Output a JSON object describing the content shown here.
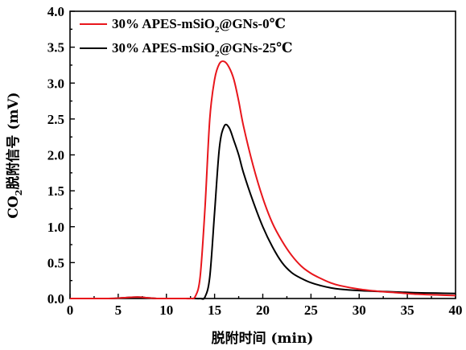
{
  "chart_data": {
    "type": "line",
    "xlabel": "脱附时间 (min)",
    "ylabel": {
      "prefix": "CO",
      "sub": "2",
      "suffix": "脱附信号 (mV)"
    },
    "xlim": [
      0,
      40
    ],
    "ylim": [
      0,
      4.0
    ],
    "xticks": [
      0,
      5,
      10,
      15,
      20,
      25,
      30,
      35,
      40
    ],
    "yticks": [
      0.0,
      0.5,
      1.0,
      1.5,
      2.0,
      2.5,
      3.0,
      3.5,
      4.0
    ],
    "ytick_labels": [
      "0.0",
      "0.5",
      "1.0",
      "1.5",
      "2.0",
      "2.5",
      "3.0",
      "3.5",
      "4.0"
    ],
    "grid": false,
    "legend_position": "top-left",
    "series": [
      {
        "name": {
          "prefix": "30% APES-mSiO",
          "sub": "2",
          "suffix": "@GNs-0℃"
        },
        "color": "#e8161c",
        "x": [
          0,
          4,
          5.5,
          7,
          8,
          9,
          10,
          11,
          12,
          12.5,
          13,
          13.5,
          14,
          14.5,
          15,
          15.5,
          16,
          16.5,
          17,
          17.5,
          18,
          19,
          20,
          21,
          22,
          23,
          24,
          25,
          26,
          27,
          28,
          30,
          32,
          34,
          36,
          38,
          40
        ],
        "y": [
          0.0,
          0.0,
          0.01,
          0.02,
          0.01,
          0.0,
          0.0,
          0.0,
          0.0,
          0.0,
          0.03,
          0.3,
          1.25,
          2.5,
          3.05,
          3.27,
          3.3,
          3.22,
          3.05,
          2.75,
          2.4,
          1.85,
          1.4,
          1.05,
          0.8,
          0.6,
          0.45,
          0.35,
          0.28,
          0.22,
          0.18,
          0.13,
          0.1,
          0.08,
          0.06,
          0.05,
          0.04
        ]
      },
      {
        "name": {
          "prefix": "30% APES-mSiO",
          "sub": "2",
          "suffix": "@GNs-25℃"
        },
        "color": "#000000",
        "x": [
          0,
          4,
          5.5,
          7,
          8,
          9,
          10,
          11,
          12,
          13,
          13.5,
          14,
          14.5,
          15,
          15.5,
          16,
          16.5,
          17,
          17.5,
          18,
          19,
          20,
          21,
          22,
          23,
          24,
          25,
          26,
          27,
          28,
          30,
          32,
          34,
          36,
          38,
          40
        ],
        "y": [
          0.0,
          0.0,
          0.01,
          0.02,
          0.01,
          0.0,
          0.0,
          0.0,
          0.0,
          0.0,
          0.0,
          0.02,
          0.3,
          1.2,
          2.1,
          2.4,
          2.38,
          2.2,
          2.0,
          1.75,
          1.35,
          1.0,
          0.72,
          0.5,
          0.36,
          0.28,
          0.22,
          0.18,
          0.15,
          0.13,
          0.11,
          0.1,
          0.09,
          0.08,
          0.075,
          0.07
        ]
      }
    ]
  }
}
